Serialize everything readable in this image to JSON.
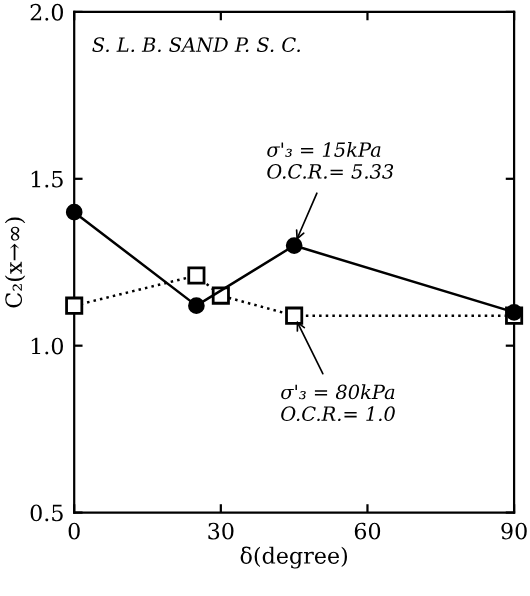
{
  "chart_data": {
    "type": "line",
    "xlabel": "δ(degree)",
    "ylabel": "C₂(x→∞)",
    "xlim": [
      0,
      90
    ],
    "xticks": [
      0,
      30,
      60,
      90
    ],
    "ylim": [
      0.5,
      2.0
    ],
    "yticks": [
      0.5,
      {
        "value": 1.0,
        "label": "1.0"
      },
      1.5,
      {
        "value": 2.0,
        "label": "2.0"
      }
    ],
    "grid": false,
    "legend": false,
    "series": [
      {
        "color": "#000000",
        "marker": "circle",
        "line_style": "solid",
        "x": [
          0,
          25,
          45,
          90
        ],
        "values": [
          1.4,
          1.12,
          1.3,
          1.1
        ]
      },
      {
        "color": "#000000",
        "marker": "square",
        "line_style": "dotted",
        "x": [
          0,
          25,
          30,
          45,
          90
        ],
        "values": [
          1.12,
          1.21,
          1.15,
          1.09,
          1.09
        ]
      }
    ],
    "annotations": [
      "S. L. B. SAND P. S. C.",
      {
        "text": "σ'₃ = 15kPa\nO.C.R.= 5.33",
        "x": 45,
        "y": 1.3
      },
      {
        "text": "σ'₃ = 80kPa\nO.C.R.= 1.0",
        "x": 45,
        "y": 1.09
      }
    ]
  }
}
